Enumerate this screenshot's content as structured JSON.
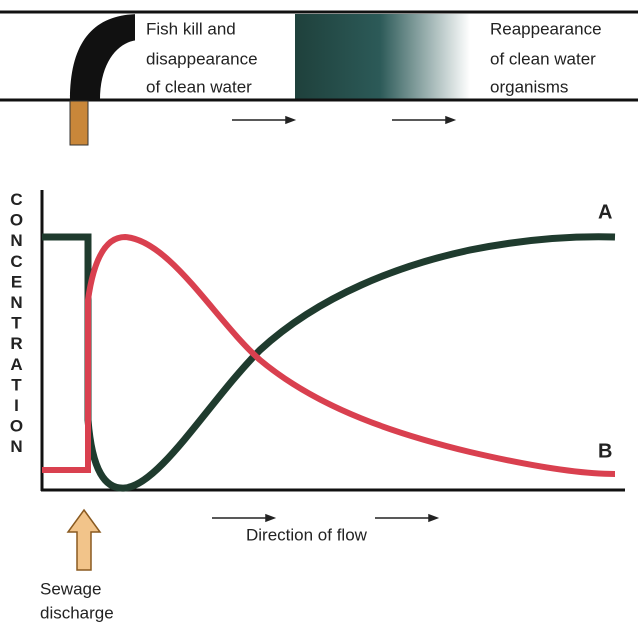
{
  "river": {
    "left_label": [
      "Fish kill and",
      "disappearance",
      "of clean water"
    ],
    "right_label": [
      "Reappearance",
      "of clean water",
      "organisms"
    ]
  },
  "graph": {
    "y_axis_label": "CONCENTRATION",
    "curves": [
      {
        "label": "A"
      },
      {
        "label": "B"
      }
    ],
    "x_axis_label": "Direction of flow",
    "source_label": [
      "Sewage",
      "discharge"
    ]
  }
}
